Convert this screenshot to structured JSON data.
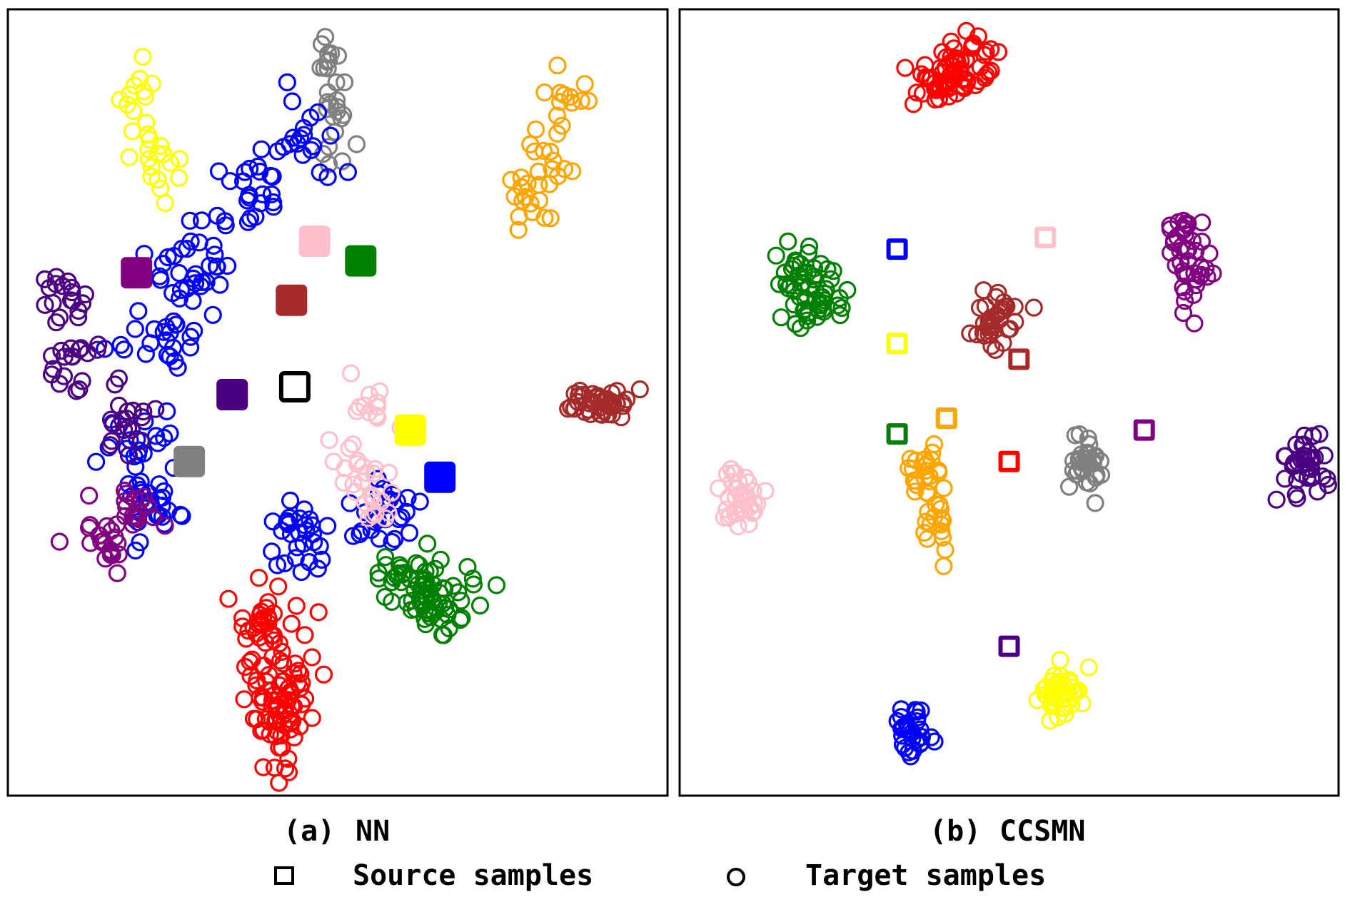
{
  "figure": {
    "panels": [
      {
        "id": "a",
        "label": "(a)",
        "title": "NN"
      },
      {
        "id": "b",
        "label": "(b)",
        "title": "CCSMN"
      }
    ],
    "legend": {
      "source_label": "Source samples",
      "target_label": "Target samples",
      "source_marker": "square",
      "target_marker": "circle"
    }
  },
  "colors": {
    "red": "#ff0000",
    "orange": "#ffa500",
    "yellow": "#ffff00",
    "green": "#008000",
    "blue": "#0000ff",
    "purple": "#800080",
    "indigo": "#4b0082",
    "brown": "#a52a2a",
    "gray": "#808080",
    "pink": "#ffc0cb",
    "black": "#000000"
  },
  "chart_data": [
    {
      "type": "scatter",
      "title": "NN",
      "xlim": [
        0,
        100
      ],
      "ylim": [
        0,
        100
      ],
      "source": [
        {
          "c": "pink",
          "x": 46.5,
          "y": 70.5
        },
        {
          "c": "green",
          "x": 53.5,
          "y": 68
        },
        {
          "c": "brown",
          "x": 43,
          "y": 63
        },
        {
          "c": "black",
          "x": 43.5,
          "y": 52
        },
        {
          "c": "indigo",
          "x": 34,
          "y": 51
        },
        {
          "c": "yellow",
          "x": 61,
          "y": 46.5
        },
        {
          "c": "blue",
          "x": 65.5,
          "y": 40.5
        },
        {
          "c": "gray",
          "x": 27.5,
          "y": 42.5
        },
        {
          "c": "purple",
          "x": 19.5,
          "y": 66.5
        }
      ],
      "target": [
        {
          "c": "yellow",
          "pts": [
            [
              19.5,
              89
            ],
            [
              22,
              83
            ],
            [
              23.5,
              78
            ]
          ],
          "n": 28,
          "s": [
            3,
            3.5
          ]
        },
        {
          "c": "gray",
          "pts": [
            [
              48.5,
              93
            ],
            [
              49,
              87
            ],
            [
              50,
              82
            ]
          ],
          "n": 28,
          "s": [
            3,
            3
          ]
        },
        {
          "c": "orange",
          "pts": [
            [
              85,
              88
            ],
            [
              82.5,
              82
            ],
            [
              79,
              75.5
            ]
          ],
          "n": 40,
          "s": [
            3.5,
            4
          ]
        },
        {
          "c": "blue",
          "pts": [
            [
              45,
              83
            ],
            [
              37,
              76
            ],
            [
              28,
              67
            ],
            [
              24,
              58
            ],
            [
              20,
              45
            ],
            [
              22,
              37
            ],
            [
              44,
              33
            ],
            [
              57,
              36
            ]
          ],
          "n": 200,
          "s": [
            5,
            4.5
          ]
        },
        {
          "c": "indigo",
          "pts": [
            [
              9,
              63
            ],
            [
              10,
              55
            ],
            [
              18,
              48
            ]
          ],
          "n": 55,
          "s": [
            4,
            4
          ]
        },
        {
          "c": "purple",
          "pts": [
            [
              14,
              32
            ],
            [
              19,
              37
            ]
          ],
          "n": 40,
          "s": [
            3.5,
            3
          ]
        },
        {
          "c": "brown",
          "pts": [
            [
              90,
              50
            ]
          ],
          "n": 45,
          "s": [
            5,
            2
          ]
        },
        {
          "c": "pink",
          "pts": [
            [
              55,
              49
            ],
            [
              52,
              42
            ],
            [
              56,
              38
            ]
          ],
          "n": 40,
          "s": [
            3,
            3
          ]
        },
        {
          "c": "green",
          "pts": [
            [
              66,
              25
            ],
            [
              62,
              27
            ]
          ],
          "n": 75,
          "s": [
            5,
            4
          ]
        },
        {
          "c": "red",
          "pts": [
            [
              39,
              21
            ],
            [
              41,
              14
            ],
            [
              42,
              8
            ]
          ],
          "n": 110,
          "s": [
            5,
            5
          ]
        }
      ]
    },
    {
      "type": "scatter",
      "title": "CCSMN",
      "xlim": [
        0,
        100
      ],
      "ylim": [
        0,
        100
      ],
      "source": [
        {
          "c": "blue",
          "x": 33,
          "y": 69.5
        },
        {
          "c": "pink",
          "x": 55.5,
          "y": 71
        },
        {
          "c": "yellow",
          "x": 33,
          "y": 57.5
        },
        {
          "c": "brown",
          "x": 51.5,
          "y": 55.5
        },
        {
          "c": "orange",
          "x": 40.5,
          "y": 48
        },
        {
          "c": "green",
          "x": 33,
          "y": 46
        },
        {
          "c": "red",
          "x": 50,
          "y": 42.5
        },
        {
          "c": "purple",
          "x": 70.5,
          "y": 46.5
        },
        {
          "c": "indigo",
          "x": 50,
          "y": 19
        }
      ],
      "target": [
        {
          "c": "red",
          "pts": [
            [
              40,
              91
            ],
            [
              44,
              93
            ]
          ],
          "n": 70,
          "s": [
            4,
            3.5
          ]
        },
        {
          "c": "green",
          "pts": [
            [
              18,
              66
            ],
            [
              21,
              63
            ]
          ],
          "n": 60,
          "s": [
            3.5,
            3.5
          ]
        },
        {
          "c": "brown",
          "pts": [
            [
              49,
              61.5
            ],
            [
              47,
              59
            ]
          ],
          "n": 35,
          "s": [
            3,
            2.5
          ]
        },
        {
          "c": "purple",
          "pts": [
            [
              76,
              70
            ],
            [
              78,
              66
            ]
          ],
          "n": 45,
          "s": [
            2.5,
            4
          ]
        },
        {
          "c": "gray",
          "pts": [
            [
              62,
              42
            ]
          ],
          "n": 35,
          "s": [
            2.5,
            3
          ]
        },
        {
          "c": "indigo",
          "pts": [
            [
              95,
              42
            ]
          ],
          "n": 40,
          "s": [
            3,
            3.5
          ]
        },
        {
          "c": "pink",
          "pts": [
            [
              9,
              38
            ]
          ],
          "n": 40,
          "s": [
            3,
            3.5
          ]
        },
        {
          "c": "orange",
          "pts": [
            [
              37,
              42
            ],
            [
              39,
              35
            ]
          ],
          "n": 40,
          "s": [
            2,
            4
          ]
        },
        {
          "c": "yellow",
          "pts": [
            [
              58,
              13
            ]
          ],
          "n": 45,
          "s": [
            3,
            3
          ]
        },
        {
          "c": "blue",
          "pts": [
            [
              35,
              8
            ]
          ],
          "n": 30,
          "s": [
            2,
            3
          ]
        }
      ]
    }
  ]
}
